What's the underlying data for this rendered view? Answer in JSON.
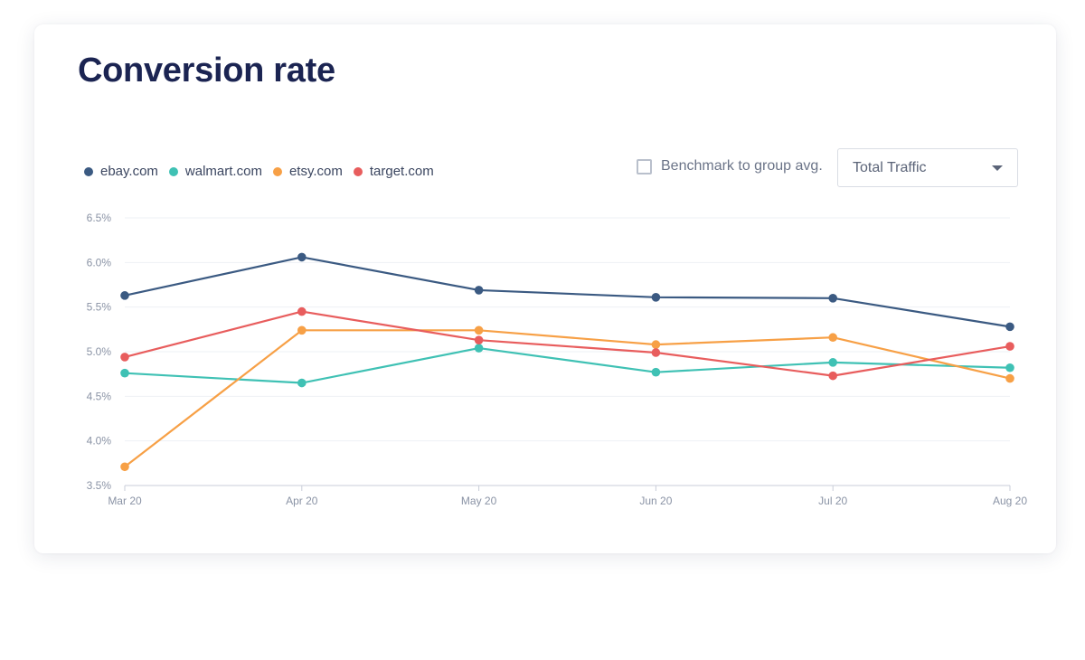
{
  "title": "Conversion rate",
  "controls": {
    "benchmark_label": "Benchmark to group avg.",
    "benchmark_checked": false,
    "dropdown_value": "Total Traffic"
  },
  "chart_data": {
    "type": "line",
    "title": "Conversion rate",
    "xlabel": "",
    "ylabel": "",
    "categories": [
      "Mar 20",
      "Apr 20",
      "May 20",
      "Jun 20",
      "Jul 20",
      "Aug 20"
    ],
    "ylim": [
      3.5,
      6.5
    ],
    "yticks": [
      3.5,
      4.0,
      4.5,
      5.0,
      5.5,
      6.0,
      6.5
    ],
    "ytick_labels": [
      "3.5%",
      "4.0%",
      "4.5%",
      "5.0%",
      "5.5%",
      "6.0%",
      "6.5%"
    ],
    "grid": true,
    "legend_position": "top-left",
    "series": [
      {
        "name": "ebay.com",
        "color": "#3b5a82",
        "values": [
          5.63,
          6.06,
          5.69,
          5.61,
          5.6,
          5.28
        ]
      },
      {
        "name": "walmart.com",
        "color": "#3fc1b4",
        "values": [
          4.76,
          4.65,
          5.04,
          4.77,
          4.88,
          4.82
        ]
      },
      {
        "name": "etsy.com",
        "color": "#f7a046",
        "values": [
          3.71,
          5.24,
          5.24,
          5.08,
          5.16,
          4.7
        ]
      },
      {
        "name": "target.com",
        "color": "#e85d5d",
        "values": [
          4.94,
          5.45,
          5.13,
          4.99,
          4.73,
          5.06
        ]
      }
    ]
  }
}
